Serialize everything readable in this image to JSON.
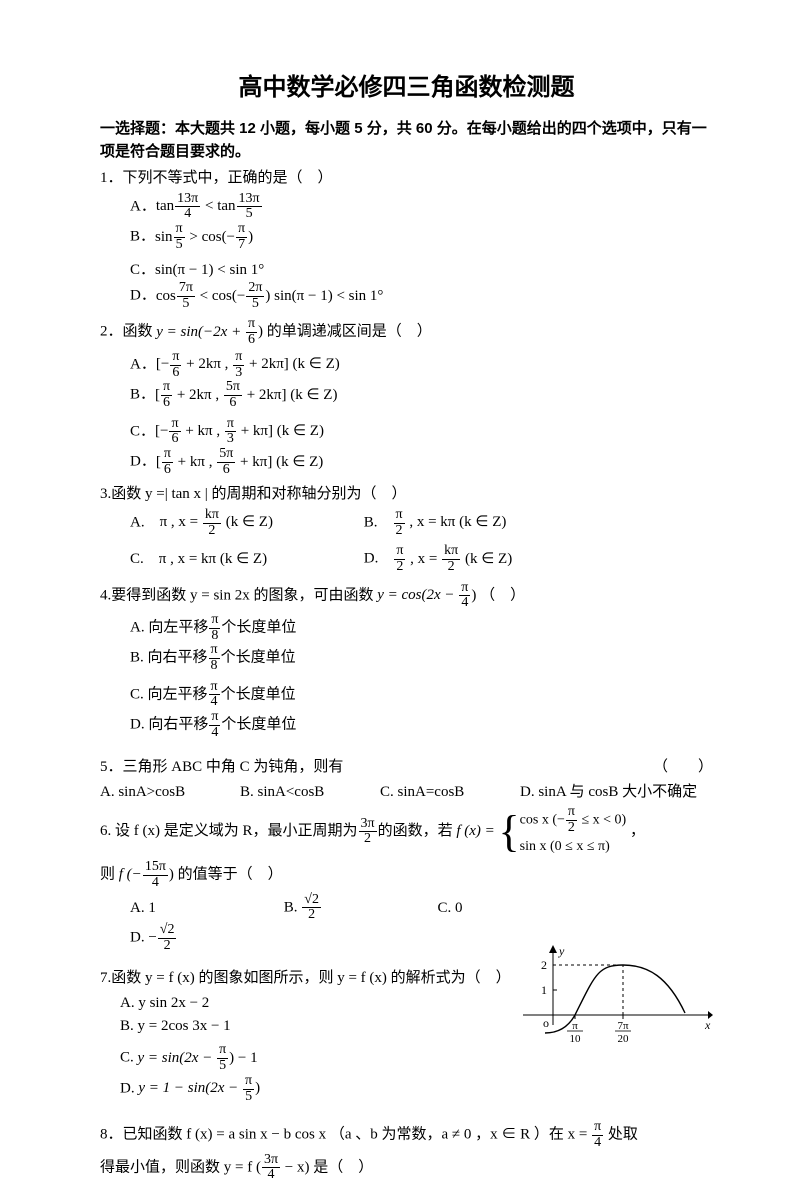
{
  "title": "高中数学必修四三角函数检测题",
  "section1_hdr": "一选择题：本大题共 12 小题，每小题 5 分，共 60 分。在每小题给出的四个选项中，只有一项是符合题目要求的。",
  "q1": {
    "stem_pre": "1．下列不等式中，正确的是（　）",
    "A_pre": "A．",
    "A_lhs": "tan",
    "A_n1": "13π",
    "A_d1": "4",
    "A_mid": " < tan",
    "A_n2": "13π",
    "A_d2": "5",
    "B_pre": "B．",
    "B_lhs": "sin",
    "B_n1": "π",
    "B_d1": "5",
    "B_mid": " > cos(−",
    "B_n2": "π",
    "B_d2": "7",
    "B_end": ")",
    "C_pre": "C．",
    "C_txt": "sin(π − 1) < sin 1°",
    "D_pre": "D．",
    "D_lhs": "cos",
    "D_n1": "7π",
    "D_d1": "5",
    "D_mid": " < cos(−",
    "D_n2": "2π",
    "D_d2": "5",
    "D_end": ")  sin(π − 1) < sin 1°"
  },
  "q2": {
    "stem_pre": "2．函数 ",
    "stem_y": "y = sin(−2x + ",
    "stem_n": "π",
    "stem_d": "6",
    "stem_post": ") 的单调递减区间是（　）",
    "A_pre": "A．",
    "A_txt1": "[−",
    "A_n1": "π",
    "A_d1": "6",
    "A_txt2": " + 2kπ , ",
    "A_n2": "π",
    "A_d2": "3",
    "A_txt3": " + 2kπ] (k ∈ Z)",
    "B_pre": "B．",
    "B_txt1": "[",
    "B_n1": "π",
    "B_d1": "6",
    "B_txt2": " + 2kπ , ",
    "B_n2": "5π",
    "B_d2": "6",
    "B_txt3": " + 2kπ] (k ∈ Z)",
    "C_pre": "C．",
    "C_txt1": "[−",
    "C_n1": "π",
    "C_d1": "6",
    "C_txt2": " + kπ , ",
    "C_n2": "π",
    "C_d2": "3",
    "C_txt3": " + kπ] (k ∈ Z)",
    "D_pre": "D．",
    "D_txt1": "[",
    "D_n1": "π",
    "D_d1": "6",
    "D_txt2": " + kπ , ",
    "D_n2": "5π",
    "D_d2": "6",
    "D_txt3": " + kπ] (k ∈ Z)"
  },
  "q3": {
    "stem": "3.函数 y =| tan x | 的周期和对称轴分别为（　）",
    "A_pre": "A.　",
    "A_txt1": "π , x = ",
    "A_n": "kπ",
    "A_d": "2",
    "A_txt2": " (k ∈ Z)",
    "B_pre": "B.　",
    "B_n": "π",
    "B_d": "2",
    "B_txt": " , x = kπ (k ∈ Z)",
    "C_pre": "C.　",
    "C_txt": "π , x = kπ (k ∈ Z)",
    "D_pre": "D.　",
    "D_n1": "π",
    "D_d1": "2",
    "D_mid": " , x = ",
    "D_n2": "kπ",
    "D_d2": "2",
    "D_txt2": " (k ∈ Z)"
  },
  "q4": {
    "stem_pre": "4.要得到函数 y = sin 2x 的图象，可由函数 ",
    "stem_y": "y = cos(2x − ",
    "stem_n": "π",
    "stem_d": "4",
    "stem_post": ") （　）",
    "A_pre": "A. 向左平移",
    "A_n": "π",
    "A_d": "8",
    "A_post": "个长度单位",
    "B_pre": "B. 向右平移",
    "B_n": "π",
    "B_d": "8",
    "B_post": "个长度单位",
    "C_pre": "C. 向左平移",
    "C_n": "π",
    "C_d": "4",
    "C_post": "个长度单位",
    "D_pre": "D. 向右平移",
    "D_n": "π",
    "D_d": "4",
    "D_post": "个长度单位"
  },
  "q5": {
    "stem": "5．三角形 ABC 中角 C 为钝角，则有",
    "paren": "（　　）",
    "A": "A. sinA>cosB",
    "B": "B. sinA<cosB",
    "C": "C. sinA=cosB",
    "D": "D. sinA 与 cosB 大小不确定"
  },
  "q6": {
    "stem_pre": "6. 设 f (x) 是定义域为 R，最小正周期为",
    "stem_n1": "3π",
    "stem_d1": "2",
    "stem_mid": "的函数，若 ",
    "fx": "f (x) = ",
    "p1_pre": "cos x (−",
    "p1_n": "π",
    "p1_d": "2",
    "p1_post": " ≤ x < 0)",
    "p2": "sin x (0 ≤ x ≤ π)",
    "comma": " ，",
    "l2_pre": "则 ",
    "l2_f": "f (−",
    "l2_n": "15π",
    "l2_d": "4",
    "l2_post": ") 的值等于（　）",
    "A": "A. 1",
    "B_pre": "B. ",
    "B_n": "√2",
    "B_d": "2",
    "C": "C. 0",
    "D_pre": "D. −",
    "D_n": "√2",
    "D_d": "2"
  },
  "q7": {
    "stem": "7.函数 y = f (x) 的图象如图所示，则 y = f (x) 的解析式为（　）",
    "A": "A. y sin 2x − 2",
    "B": "B. y = 2cos 3x − 1",
    "C_pre": "C. ",
    "C_y": "y = sin(2x − ",
    "C_n": "π",
    "C_d": "5",
    "C_post": ") − 1",
    "D_pre": "D. ",
    "D_y": "y = 1 − sin(2x − ",
    "D_n": "π",
    "D_d": "5",
    "D_post": ")",
    "graph": {
      "ymax_label": "2",
      "ytick_label": "1",
      "x1_n": "π",
      "x1_d": "10",
      "x2_n": "7π",
      "x2_d": "20",
      "x_axis_label": "x",
      "y_axis_label": "y",
      "origin": "o",
      "stroke": "#000000",
      "dash": "3,3",
      "bg": "#ffffff",
      "width": 190,
      "height": 110
    }
  },
  "q8": {
    "stem_pre": "8．已知函数 f (x) = a sin x − b cos x （a 、b 为常数，a ≠ 0 ，x ∈ R ）在 x = ",
    "stem_n": "π",
    "stem_d": "4",
    "stem_post": " 处取",
    "l2_pre": "得最小值，则函数 y = f (",
    "l2_n": "3π",
    "l2_d": "4",
    "l2_post": " − x) 是（　）"
  }
}
